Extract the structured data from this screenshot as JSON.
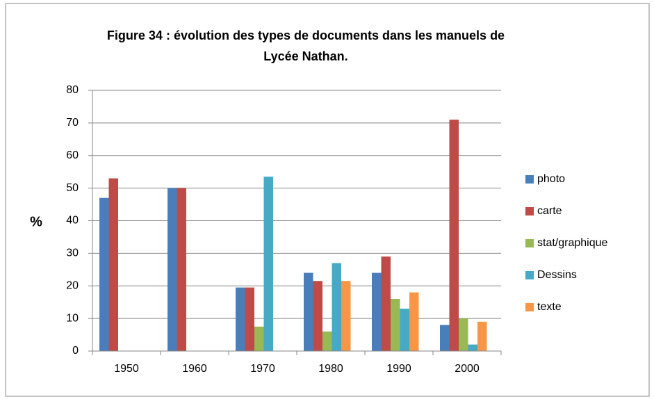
{
  "chart_data": {
    "type": "bar",
    "title": "Figure 34 : évolution des types de documents dans les manuels de Lycée Nathan.",
    "y_label": "%",
    "categories": [
      "1950",
      "1960",
      "1970",
      "1980",
      "1990",
      "2000"
    ],
    "series": [
      {
        "name": "photo",
        "color": "#4a7ebb",
        "values": [
          47,
          50,
          19.5,
          24,
          24,
          8
        ]
      },
      {
        "name": "carte",
        "color": "#be4b48",
        "values": [
          53,
          50,
          19.5,
          21.5,
          29,
          71
        ]
      },
      {
        "name": "stat/graphique",
        "color": "#98b954",
        "values": [
          0,
          0,
          7.5,
          6,
          16,
          10
        ]
      },
      {
        "name": "Dessins",
        "color": "#46aac5",
        "values": [
          0,
          0,
          53.5,
          27,
          13,
          2
        ]
      },
      {
        "name": "texte",
        "color": "#f79646",
        "values": [
          0,
          0,
          0,
          21.5,
          18,
          9
        ]
      }
    ],
    "ylim": [
      0,
      80
    ],
    "yticks": [
      0,
      10,
      20,
      30,
      40,
      50,
      60,
      70,
      80
    ],
    "grid": true,
    "legend": "right"
  }
}
